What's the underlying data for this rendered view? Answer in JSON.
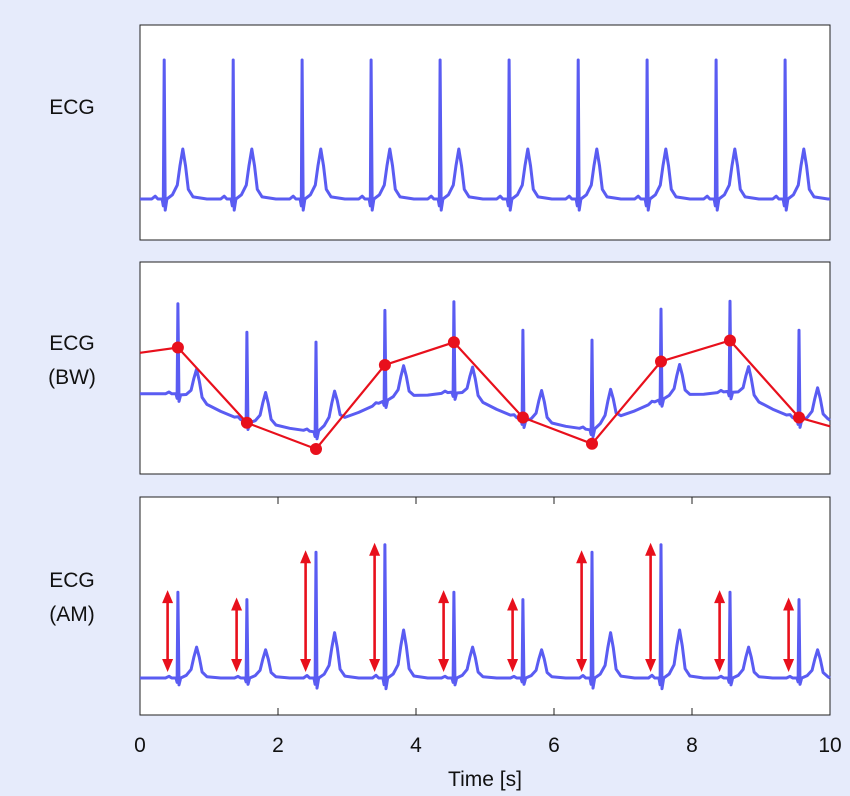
{
  "chart_data": {
    "type": "line",
    "xlabel": "Time [s]",
    "xlim": [
      0,
      10
    ],
    "x_ticks": [
      "0",
      "2",
      "4",
      "6",
      "8",
      "10"
    ],
    "panels": [
      {
        "label_lines": [
          "ECG"
        ],
        "beat_times_s": [
          0.35,
          1.35,
          2.35,
          3.35,
          4.35,
          5.35,
          6.35,
          7.35,
          8.35,
          9.35
        ],
        "annotation": "none"
      },
      {
        "label_lines": [
          "ECG",
          "(BW)"
        ],
        "beat_times_s": [
          0.55,
          1.55,
          2.55,
          3.55,
          4.55,
          5.55,
          6.55,
          7.55,
          8.55,
          9.55
        ],
        "baseline_wander_points": {
          "x": [
            0.55,
            1.55,
            2.55,
            3.55,
            4.55,
            5.55,
            6.55,
            7.55,
            8.55,
            9.55
          ],
          "y": [
            0.7,
            0.27,
            0.12,
            0.6,
            0.73,
            0.3,
            0.15,
            0.62,
            0.74,
            0.3
          ]
        },
        "annotation": "baseline wander trend (red dots + line)"
      },
      {
        "label_lines": [
          "ECG",
          "(AM)"
        ],
        "beat_times_s": [
          0.55,
          1.55,
          2.55,
          3.55,
          4.55,
          5.55,
          6.55,
          7.55,
          8.55,
          9.55
        ],
        "amplitude_modulation_arrows": {
          "x": [
            0.4,
            1.4,
            2.4,
            3.4,
            4.4,
            5.4,
            6.4,
            7.4,
            8.4,
            9.4
          ],
          "amplitude": [
            0.58,
            0.53,
            0.85,
            0.9,
            0.58,
            0.53,
            0.85,
            0.9,
            0.58,
            0.53
          ]
        },
        "annotation": "amplitude modulation (red double arrows)"
      }
    ]
  },
  "colors": {
    "ecg_line": "#5a5cf2",
    "annotation": "#e8101c",
    "background": "#e6ebfb",
    "panel": "#ffffff"
  }
}
